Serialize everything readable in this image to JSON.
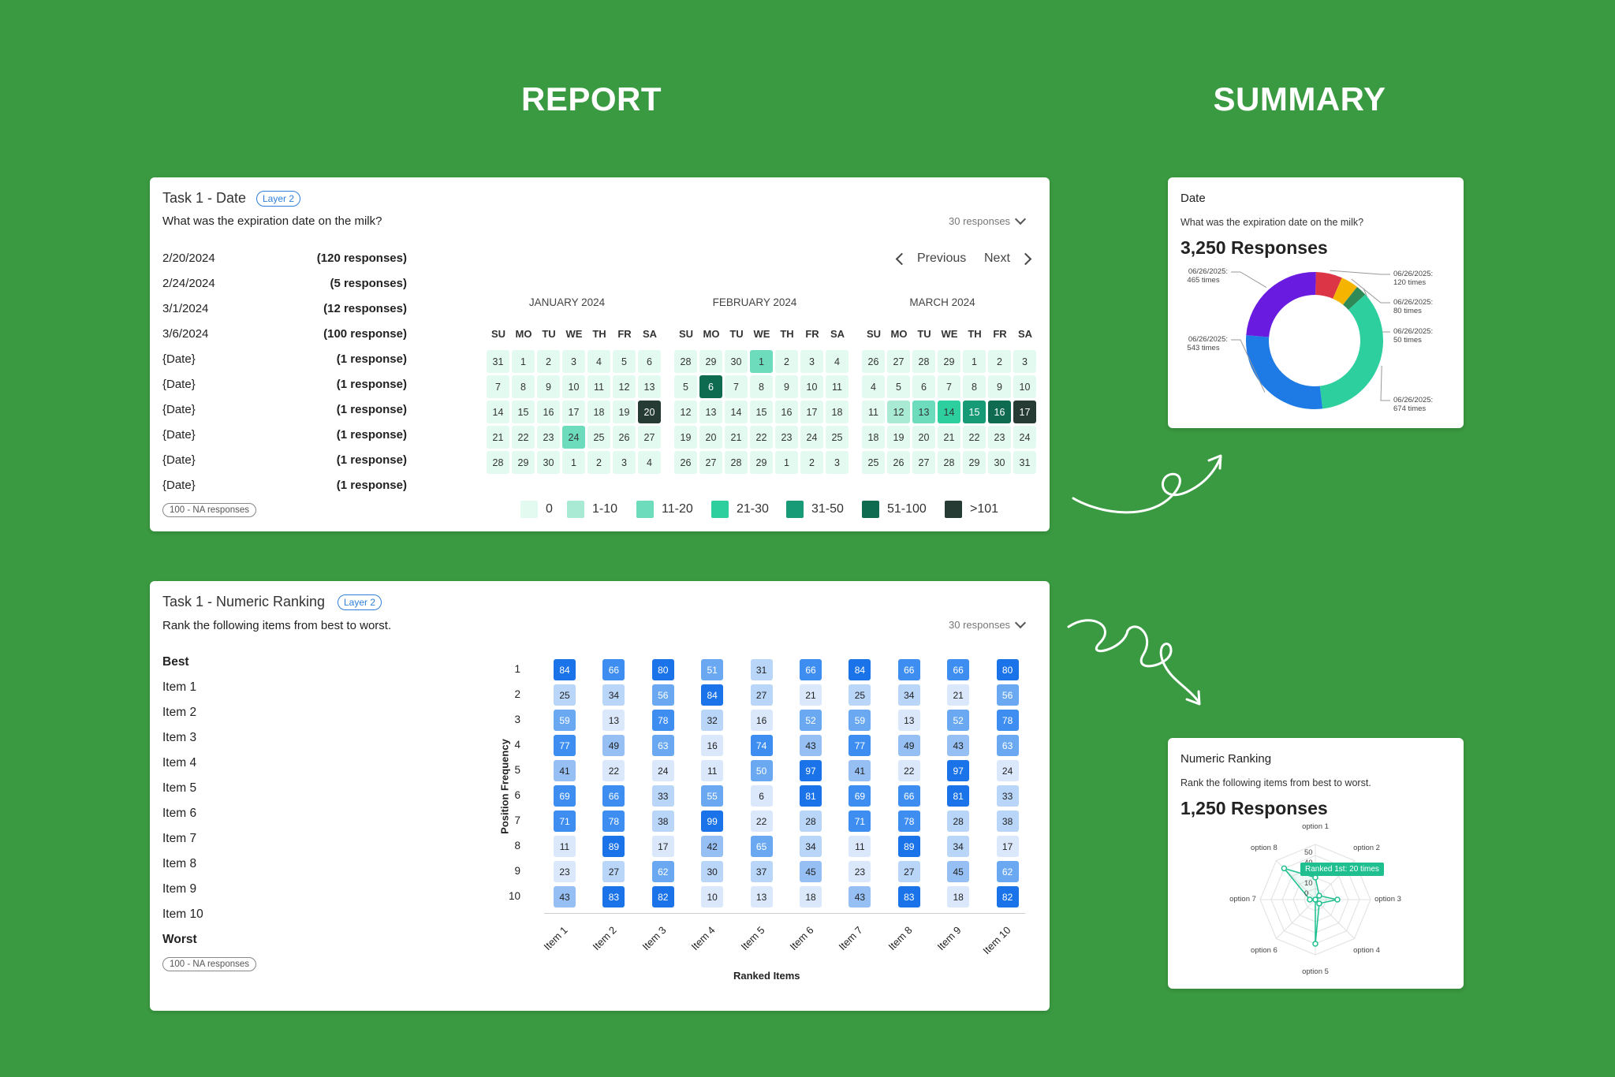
{
  "headings": {
    "report": "REPORT",
    "summary": "SUMMARY"
  },
  "date_card": {
    "title": "Task 1 - Date",
    "badge": "Layer 2",
    "question": "What was the expiration date on the milk?",
    "responses_label": "30 responses",
    "rows": [
      {
        "date": "2/20/2024",
        "count": "(120 responses)"
      },
      {
        "date": "2/24/2024",
        "count": "(5 responses)"
      },
      {
        "date": "3/1/2024",
        "count": "(12 responses)"
      },
      {
        "date": "3/6/2024",
        "count": "(100 response)"
      },
      {
        "date": "{Date}",
        "count": "(1 response)"
      },
      {
        "date": "{Date}",
        "count": "(1 response)"
      },
      {
        "date": "{Date}",
        "count": "(1 response)"
      },
      {
        "date": "{Date}",
        "count": "(1 response)"
      },
      {
        "date": "{Date}",
        "count": "(1 response)"
      },
      {
        "date": "{Date}",
        "count": "(1 response)"
      }
    ],
    "na_label": "100 - NA responses",
    "nav": {
      "previous": "Previous",
      "next": "Next"
    },
    "weekdays": [
      "SU",
      "MO",
      "TU",
      "WE",
      "TH",
      "FR",
      "SA"
    ],
    "months": [
      {
        "name": "JANUARY 2024",
        "days": [
          "31",
          "1",
          "2",
          "3",
          "4",
          "5",
          "6",
          "7",
          "8",
          "9",
          "10",
          "11",
          "12",
          "13",
          "14",
          "15",
          "16",
          "17",
          "18",
          "19",
          "20",
          "21",
          "22",
          "23",
          "24",
          "25",
          "26",
          "27",
          "28",
          "29",
          "30",
          "1",
          "2",
          "3",
          "4"
        ],
        "levels": [
          0,
          0,
          0,
          0,
          0,
          0,
          0,
          0,
          0,
          0,
          0,
          0,
          0,
          0,
          0,
          0,
          0,
          0,
          0,
          0,
          6,
          0,
          0,
          0,
          2,
          0,
          0,
          0,
          0,
          0,
          0,
          0,
          0,
          0,
          0
        ]
      },
      {
        "name": "FEBRUARY 2024",
        "days": [
          "28",
          "29",
          "30",
          "1",
          "2",
          "3",
          "4",
          "5",
          "6",
          "7",
          "8",
          "9",
          "10",
          "11",
          "12",
          "13",
          "14",
          "15",
          "16",
          "17",
          "18",
          "19",
          "20",
          "21",
          "22",
          "23",
          "24",
          "25",
          "26",
          "27",
          "28",
          "29",
          "1",
          "2",
          "3"
        ],
        "levels": [
          0,
          0,
          0,
          2,
          0,
          0,
          0,
          0,
          5,
          0,
          0,
          0,
          0,
          0,
          0,
          0,
          0,
          0,
          0,
          0,
          0,
          0,
          0,
          0,
          0,
          0,
          0,
          0,
          0,
          0,
          0,
          0,
          0,
          0,
          0
        ]
      },
      {
        "name": "MARCH 2024",
        "days": [
          "26",
          "27",
          "28",
          "29",
          "1",
          "2",
          "3",
          "4",
          "5",
          "6",
          "7",
          "8",
          "9",
          "10",
          "11",
          "12",
          "13",
          "14",
          "15",
          "16",
          "17",
          "18",
          "19",
          "20",
          "21",
          "22",
          "23",
          "24",
          "25",
          "26",
          "27",
          "28",
          "29",
          "30",
          "31"
        ],
        "levels": [
          0,
          0,
          0,
          0,
          0,
          0,
          0,
          0,
          0,
          0,
          0,
          0,
          0,
          0,
          0,
          1,
          2,
          3,
          4,
          5,
          6,
          0,
          0,
          0,
          0,
          0,
          0,
          0,
          0,
          0,
          0,
          0,
          0,
          0,
          0
        ]
      }
    ],
    "legend": [
      {
        "label": "0",
        "color": "#e3faf1"
      },
      {
        "label": "1-10",
        "color": "#a9ead5"
      },
      {
        "label": "11-20",
        "color": "#6cdcbc"
      },
      {
        "label": "21-30",
        "color": "#2ecf9f"
      },
      {
        "label": "31-50",
        "color": "#179a76"
      },
      {
        "label": "51-100",
        "color": "#0f6b50"
      },
      {
        "label": ">101",
        "color": "#253b34"
      }
    ]
  },
  "rank_card": {
    "title": "Task 1 - Numeric Ranking",
    "badge": "Layer 2",
    "question": "Rank the following items from best to worst.",
    "responses_label": "30 responses",
    "best_label": "Best",
    "worst_label": "Worst",
    "items": [
      "Item 1",
      "Item 2",
      "Item 3",
      "Item 4",
      "Item 5",
      "Item 6",
      "Item 7",
      "Item 8",
      "Item 9",
      "Item 10"
    ],
    "na_label": "100 - NA responses",
    "heatmap": {
      "ylabel": "Position Frequency",
      "xlabel": "Ranked Items",
      "rows": [
        "1",
        "2",
        "3",
        "4",
        "5",
        "6",
        "7",
        "8",
        "9",
        "10"
      ],
      "columns": [
        "Item 1",
        "Item 2",
        "Item 3",
        "Item 4",
        "Item 5",
        "Item 6",
        "Item 7",
        "Item 8",
        "Item 9",
        "Item 10"
      ],
      "values": [
        [
          84,
          66,
          80,
          51,
          31,
          66,
          84,
          66,
          66,
          80
        ],
        [
          25,
          34,
          56,
          84,
          27,
          21,
          25,
          34,
          21,
          56
        ],
        [
          59,
          13,
          78,
          32,
          16,
          52,
          59,
          13,
          52,
          78
        ],
        [
          77,
          49,
          63,
          16,
          74,
          43,
          77,
          49,
          43,
          63
        ],
        [
          41,
          22,
          24,
          11,
          50,
          97,
          41,
          22,
          97,
          24
        ],
        [
          69,
          66,
          33,
          55,
          6,
          81,
          69,
          66,
          81,
          33
        ],
        [
          71,
          78,
          38,
          99,
          22,
          28,
          71,
          78,
          28,
          38
        ],
        [
          11,
          89,
          17,
          42,
          65,
          34,
          11,
          89,
          34,
          17
        ],
        [
          23,
          27,
          62,
          30,
          37,
          45,
          23,
          27,
          45,
          62
        ],
        [
          43,
          83,
          82,
          10,
          13,
          18,
          43,
          83,
          18,
          82
        ]
      ]
    }
  },
  "date_summary": {
    "title": "Date",
    "question": "What was the expiration date on the milk?",
    "total": "3,250 Responses",
    "chart_data": {
      "type": "pie",
      "donut": true,
      "slices": [
        {
          "label": "06/26/2025:",
          "count_label": "120 times",
          "value": 120,
          "color": "#dc3545"
        },
        {
          "label": "06/26/2025:",
          "count_label": "80 times",
          "value": 80,
          "color": "#f4b400"
        },
        {
          "label": "06/26/2025:",
          "count_label": "50 times",
          "value": 50,
          "color": "#2e8b57"
        },
        {
          "label": "06/26/2025:",
          "count_label": "674 times",
          "value": 674,
          "color": "#2ecf9f"
        },
        {
          "label": "06/26/2025:",
          "count_label": "543 times",
          "value": 543,
          "color": "#1e7be6"
        },
        {
          "label": "06/26/2025:",
          "count_label": "465 times",
          "value": 465,
          "color": "#6a1be0"
        }
      ]
    }
  },
  "ranking_summary": {
    "title": "Numeric Ranking",
    "question": "Rank the following items from best to worst.",
    "total": "1,250 Responses",
    "tooltip": "Ranked 1st: 20 times",
    "chart_data": {
      "type": "radar",
      "axes": [
        "option 1",
        "option 2",
        "option 3",
        "option 4",
        "option 5",
        "option 6",
        "option 7",
        "option 8"
      ],
      "ticks": [
        "50",
        "40",
        "20",
        "10",
        "0"
      ],
      "max": 50,
      "values": [
        20,
        5,
        20,
        5,
        40,
        0,
        5,
        40
      ],
      "color": "#1fbf8f"
    }
  }
}
